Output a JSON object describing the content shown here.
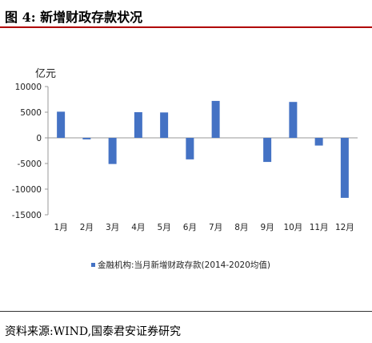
{
  "header": {
    "title": "图 4:  新增财政存款状况"
  },
  "chart_data": {
    "type": "bar",
    "unit_label": "亿元",
    "categories": [
      "1月",
      "2月",
      "3月",
      "4月",
      "5月",
      "6月",
      "7月",
      "8月",
      "9月",
      "10月",
      "11月",
      "12月"
    ],
    "series": [
      {
        "name": "金融机构:当月新增财政存款(2014-2020均值)",
        "values": [
          5100,
          -300,
          -5100,
          5000,
          4950,
          -4200,
          7200,
          0,
          -4700,
          7000,
          -1500,
          -11700
        ],
        "color": "#4472c4"
      }
    ],
    "ylim": [
      -15000,
      10000
    ],
    "yticks": [
      10000,
      5000,
      0,
      -5000,
      -10000,
      -15000
    ],
    "ytick_labels": [
      "10000",
      "5000",
      "0",
      "-5000",
      "-10000",
      "-15000"
    ],
    "legend_position": "bottom",
    "grid": false
  },
  "footer": {
    "source": "资料来源:WIND,国泰君安证券研究"
  }
}
